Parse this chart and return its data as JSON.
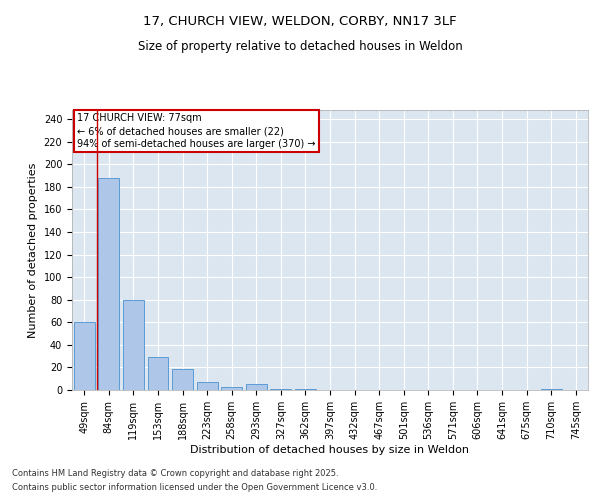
{
  "title1": "17, CHURCH VIEW, WELDON, CORBY, NN17 3LF",
  "title2": "Size of property relative to detached houses in Weldon",
  "xlabel": "Distribution of detached houses by size in Weldon",
  "ylabel": "Number of detached properties",
  "categories": [
    "49sqm",
    "84sqm",
    "119sqm",
    "153sqm",
    "188sqm",
    "223sqm",
    "258sqm",
    "293sqm",
    "327sqm",
    "362sqm",
    "397sqm",
    "432sqm",
    "467sqm",
    "501sqm",
    "536sqm",
    "571sqm",
    "606sqm",
    "641sqm",
    "675sqm",
    "710sqm",
    "745sqm"
  ],
  "values": [
    60,
    188,
    80,
    29,
    19,
    7,
    3,
    5,
    1,
    1,
    0,
    0,
    0,
    0,
    0,
    0,
    0,
    0,
    0,
    1,
    0
  ],
  "bar_color": "#aec6e8",
  "bar_edge_color": "#5b9bd5",
  "background_color": "#dce6f1",
  "grid_color": "#ffffff",
  "red_line_x": 0.5,
  "annotation_title": "17 CHURCH VIEW: 77sqm",
  "annotation_line1": "← 6% of detached houses are smaller (22)",
  "annotation_line2": "94% of semi-detached houses are larger (370) →",
  "annotation_box_color": "#ffffff",
  "annotation_border_color": "#cc0000",
  "ylim": [
    0,
    248
  ],
  "yticks": [
    0,
    20,
    40,
    60,
    80,
    100,
    120,
    140,
    160,
    180,
    200,
    220,
    240
  ],
  "footer1": "Contains HM Land Registry data © Crown copyright and database right 2025.",
  "footer2": "Contains public sector information licensed under the Open Government Licence v3.0.",
  "title1_fontsize": 9.5,
  "title2_fontsize": 8.5,
  "axis_label_fontsize": 8,
  "tick_fontsize": 7,
  "annotation_fontsize": 7,
  "footer_fontsize": 6
}
